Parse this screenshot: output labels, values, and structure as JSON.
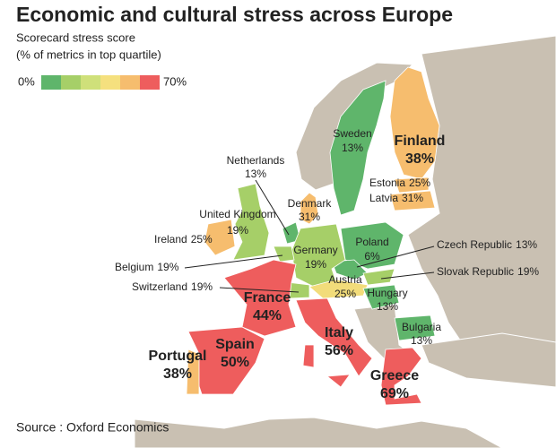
{
  "title": "Economic and cultural stress across Europe",
  "subtitle": [
    "Scorecard stress score",
    "(% of metrics in top quartile)"
  ],
  "legend": {
    "min_label": "0%",
    "max_label": "70%",
    "colors": [
      "#5fb56b",
      "#a6cf68",
      "#cfe07a",
      "#f5e07e",
      "#f6bd6e",
      "#ee5d5d"
    ]
  },
  "countries": [
    {
      "name": "Sweden",
      "value": 13,
      "value_label": "13%",
      "color": "#5fb56b"
    },
    {
      "name": "Finland",
      "value": 38,
      "value_label": "38%",
      "color": "#f6bd6e"
    },
    {
      "name": "Netherlands",
      "value": 13,
      "value_label": "13%",
      "color": "#5fb56b"
    },
    {
      "name": "Estonia",
      "value": 25,
      "value_label": "25%",
      "color": "#f6bd6e"
    },
    {
      "name": "Latvia",
      "value": 31,
      "value_label": "31%",
      "color": "#f6bd6e"
    },
    {
      "name": "Denmark",
      "value": 31,
      "value_label": "31%",
      "color": "#f6bd6e"
    },
    {
      "name": "United Kingdom",
      "value": 19,
      "value_label": "19%",
      "color": "#a6cf68"
    },
    {
      "name": "Ireland",
      "value": 25,
      "value_label": "25%",
      "color": "#f6bd6e"
    },
    {
      "name": "Poland",
      "value": 6,
      "value_label": "6%",
      "color": "#5fb56b"
    },
    {
      "name": "Czech Republic",
      "value": 13,
      "value_label": "13%",
      "color": "#5fb56b"
    },
    {
      "name": "Germany",
      "value": 19,
      "value_label": "19%",
      "color": "#a6cf68"
    },
    {
      "name": "Belgium",
      "value": 19,
      "value_label": "19%",
      "color": "#a6cf68"
    },
    {
      "name": "Slovak Republic",
      "value": 19,
      "value_label": "19%",
      "color": "#a6cf68"
    },
    {
      "name": "Austria",
      "value": 25,
      "value_label": "25%",
      "color": "#f2dc7a"
    },
    {
      "name": "Switzerland",
      "value": 19,
      "value_label": "19%",
      "color": "#a6cf68"
    },
    {
      "name": "Hungary",
      "value": 13,
      "value_label": "13%",
      "color": "#5fb56b"
    },
    {
      "name": "France",
      "value": 44,
      "value_label": "44%",
      "color": "#ee5d5d"
    },
    {
      "name": "Italy",
      "value": 56,
      "value_label": "56%",
      "color": "#ee5d5d"
    },
    {
      "name": "Bulgaria",
      "value": 13,
      "value_label": "13%",
      "color": "#5fb56b"
    },
    {
      "name": "Spain",
      "value": 50,
      "value_label": "50%",
      "color": "#ee5d5d"
    },
    {
      "name": "Portugal",
      "value": 38,
      "value_label": "38%",
      "color": "#f6bd6e"
    },
    {
      "name": "Greece",
      "value": 69,
      "value_label": "69%",
      "color": "#ee5d5d"
    }
  ],
  "source": "Source : Oxford Economics"
}
